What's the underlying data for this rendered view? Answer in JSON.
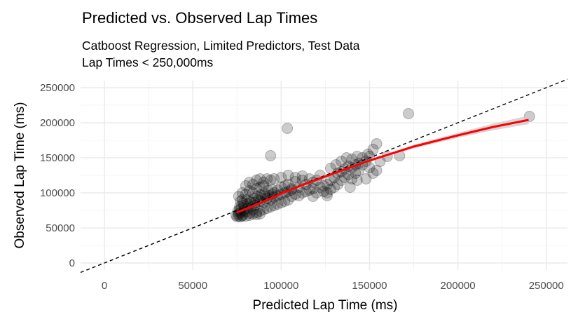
{
  "chart_data": {
    "type": "scatter",
    "title": "Predicted vs. Observed Lap Times",
    "subtitle_line1": "Catboost Regression, Limited Predictors, Test Data",
    "subtitle_line2": "Lap Times < 250,000ms",
    "xlabel": "Predicted Lap Time (ms)",
    "ylabel": "Observed Lap Time (ms)",
    "xlim": [
      -13500,
      262000
    ],
    "ylim": [
      -10000,
      260000
    ],
    "x_ticks": [
      "0",
      "50000",
      "100000",
      "150000",
      "200000",
      "250000"
    ],
    "y_ticks": [
      "0",
      "50000",
      "100000",
      "150000",
      "200000",
      "250000"
    ],
    "grid": true,
    "reference_line": {
      "type": "y = x",
      "style": "dashed",
      "color": "#000000"
    },
    "smooth_color": "#ff0000",
    "ribbon_color": "#cccccc",
    "point_color": "#000000",
    "points": [
      [
        76000,
        70000
      ],
      [
        77000,
        72000
      ],
      [
        78000,
        68000
      ],
      [
        79000,
        75000
      ],
      [
        80000,
        73000
      ],
      [
        81000,
        78000
      ],
      [
        82000,
        71000
      ],
      [
        83000,
        80000
      ],
      [
        84000,
        76000
      ],
      [
        85000,
        82000
      ],
      [
        76500,
        80000
      ],
      [
        78500,
        85000
      ],
      [
        80500,
        90000
      ],
      [
        82500,
        88000
      ],
      [
        84500,
        92000
      ],
      [
        86500,
        95000
      ],
      [
        88500,
        97000
      ],
      [
        90500,
        99000
      ],
      [
        92500,
        103000
      ],
      [
        94500,
        105000
      ],
      [
        76000,
        95000
      ],
      [
        78000,
        100000
      ],
      [
        80000,
        110000
      ],
      [
        82000,
        115000
      ],
      [
        84000,
        112000
      ],
      [
        86000,
        118000
      ],
      [
        88000,
        120000
      ],
      [
        90000,
        115000
      ],
      [
        92000,
        120000
      ],
      [
        94000,
        118000
      ],
      [
        86000,
        72000
      ],
      [
        88000,
        74000
      ],
      [
        90000,
        76000
      ],
      [
        92000,
        78000
      ],
      [
        94000,
        80000
      ],
      [
        96000,
        82000
      ],
      [
        98000,
        84000
      ],
      [
        100000,
        86000
      ],
      [
        102000,
        88000
      ],
      [
        104000,
        90000
      ],
      [
        96000,
        100000
      ],
      [
        98000,
        104000
      ],
      [
        100000,
        108000
      ],
      [
        102000,
        110000
      ],
      [
        104000,
        112000
      ],
      [
        106000,
        106000
      ],
      [
        108000,
        116000
      ],
      [
        110000,
        108000
      ],
      [
        112000,
        118000
      ],
      [
        114000,
        112000
      ],
      [
        96000,
        120000
      ],
      [
        100000,
        122000
      ],
      [
        104000,
        125000
      ],
      [
        108000,
        122000
      ],
      [
        112000,
        124000
      ],
      [
        116000,
        120000
      ],
      [
        118000,
        115000
      ],
      [
        120000,
        118000
      ],
      [
        122000,
        125000
      ],
      [
        124000,
        110000
      ],
      [
        106000,
        95000
      ],
      [
        108000,
        98000
      ],
      [
        110000,
        96000
      ],
      [
        112000,
        100000
      ],
      [
        114000,
        102000
      ],
      [
        116000,
        104000
      ],
      [
        118000,
        106000
      ],
      [
        120000,
        100000
      ],
      [
        122000,
        108000
      ],
      [
        124000,
        102000
      ],
      [
        126000,
        112000
      ],
      [
        128000,
        118000
      ],
      [
        130000,
        122000
      ],
      [
        132000,
        128000
      ],
      [
        134000,
        130000
      ],
      [
        136000,
        134000
      ],
      [
        138000,
        138000
      ],
      [
        140000,
        136000
      ],
      [
        142000,
        140000
      ],
      [
        144000,
        142000
      ],
      [
        126000,
        100000
      ],
      [
        128000,
        105000
      ],
      [
        130000,
        108000
      ],
      [
        132000,
        112000
      ],
      [
        134000,
        118000
      ],
      [
        136000,
        122000
      ],
      [
        138000,
        126000
      ],
      [
        140000,
        120000
      ],
      [
        142000,
        128000
      ],
      [
        144000,
        132000
      ],
      [
        128000,
        135000
      ],
      [
        131000,
        140000
      ],
      [
        134000,
        145000
      ],
      [
        137000,
        150000
      ],
      [
        140000,
        148000
      ],
      [
        143000,
        152000
      ],
      [
        146000,
        150000
      ],
      [
        149000,
        155000
      ],
      [
        152000,
        162000
      ],
      [
        154000,
        170000
      ],
      [
        146000,
        140000
      ],
      [
        148000,
        145000
      ],
      [
        150000,
        136000
      ],
      [
        152000,
        128000
      ],
      [
        154000,
        132000
      ],
      [
        148000,
        120000
      ],
      [
        143000,
        118000
      ],
      [
        139000,
        108000
      ],
      [
        150000,
        152000
      ],
      [
        156000,
        145000
      ],
      [
        88000,
        88000
      ],
      [
        90000,
        86000
      ],
      [
        92000,
        92000
      ],
      [
        94000,
        90000
      ],
      [
        96000,
        94000
      ],
      [
        98000,
        96000
      ],
      [
        100000,
        98000
      ],
      [
        102000,
        100000
      ],
      [
        104000,
        102000
      ],
      [
        106000,
        104000
      ],
      [
        77000,
        88000
      ],
      [
        79000,
        82000
      ],
      [
        81000,
        84000
      ],
      [
        83000,
        86000
      ],
      [
        85000,
        86000
      ],
      [
        87000,
        90000
      ],
      [
        89000,
        92000
      ],
      [
        91000,
        95000
      ],
      [
        93000,
        96000
      ],
      [
        95000,
        98000
      ],
      [
        75500,
        74000
      ],
      [
        76500,
        76000
      ],
      [
        77500,
        79000
      ],
      [
        78000,
        90000
      ],
      [
        80000,
        98000
      ],
      [
        82000,
        103000
      ],
      [
        84000,
        100000
      ],
      [
        86000,
        106000
      ],
      [
        88000,
        108000
      ],
      [
        90000,
        110000
      ],
      [
        74500,
        68000
      ],
      [
        75000,
        66000
      ],
      [
        76000,
        67000
      ],
      [
        77000,
        66000
      ],
      [
        78000,
        67000
      ],
      [
        80000,
        67000
      ],
      [
        82000,
        68000
      ],
      [
        84000,
        70000
      ],
      [
        86000,
        69000
      ],
      [
        88000,
        70000
      ],
      [
        94000,
        153000
      ],
      [
        103500,
        192000
      ],
      [
        167000,
        153000
      ],
      [
        172000,
        213000
      ],
      [
        240500,
        209000
      ],
      [
        126000,
        96000
      ],
      [
        160000,
        152000
      ],
      [
        118000,
        95000
      ]
    ],
    "smooth_line": [
      [
        75000,
        72000
      ],
      [
        85000,
        82000
      ],
      [
        100000,
        99000
      ],
      [
        115000,
        114000
      ],
      [
        130000,
        128000
      ],
      [
        150000,
        146000
      ],
      [
        175000,
        166000
      ],
      [
        200000,
        182000
      ],
      [
        220000,
        194000
      ],
      [
        240000,
        204000
      ]
    ],
    "ribbon_halfwidth": [
      [
        75000,
        1500
      ],
      [
        150000,
        1500
      ],
      [
        200000,
        3500
      ],
      [
        240000,
        6000
      ]
    ]
  }
}
